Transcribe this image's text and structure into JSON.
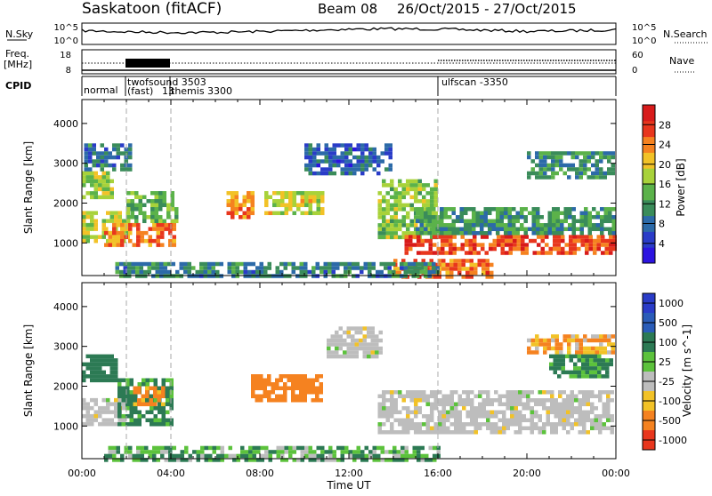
{
  "header": {
    "station": "Saskatoon (fitACF)",
    "beam": "Beam 08",
    "date_range": "26/Oct/2015 - 27/Oct/2015"
  },
  "noise_panel": {
    "left_label": "N.Sky",
    "left_ticks": [
      "10^5",
      "10^0"
    ],
    "right_label": "N.Search",
    "right_ticks": [
      "10^5",
      "10^0"
    ]
  },
  "freq_panel": {
    "left_label_1": "Freq.",
    "left_label_2": "[MHz]",
    "left_ticks": [
      "18",
      "8"
    ],
    "right_label": "Nave",
    "right_ticks": [
      "60",
      "0"
    ]
  },
  "cpid": {
    "label": "CPID",
    "modes": [
      {
        "label": "normal",
        "start_hour": 0
      },
      {
        "label": "twofsound  3503",
        "start_hour": 2
      },
      {
        "label": "(fast)",
        "start_hour": 2
      },
      {
        "label": "13",
        "start_hour": 4
      },
      {
        "label": "themis 3300",
        "start_hour": 4
      },
      {
        "label": "ulfscan -3350",
        "start_hour": 16
      }
    ]
  },
  "chart_data": [
    {
      "type": "heatmap",
      "name": "Power",
      "ylabel": "Slant Range [km]",
      "colorbar_label": "Power [dB]",
      "colorbar_ticks": [
        "4",
        "8",
        "12",
        "16",
        "20",
        "24",
        "28"
      ],
      "colorbar_min": 0,
      "colorbar_max": 32,
      "ylim": [
        180,
        4600
      ],
      "y_ticks": [
        1000,
        2000,
        3000,
        4000
      ],
      "xlim": [
        0,
        24
      ],
      "x_ticks": [
        "00:00",
        "04:00",
        "08:00",
        "12:00",
        "16:00",
        "20:00",
        "00:00"
      ],
      "dashed_vlines_hours": [
        2,
        4,
        16
      ],
      "regions": [
        {
          "t0": 0.0,
          "t1": 2.0,
          "r0": 1000,
          "r1": 1800,
          "value": 18
        },
        {
          "t0": 1.0,
          "t1": 4.2,
          "r0": 950,
          "r1": 1500,
          "value": 24
        },
        {
          "t0": 0.0,
          "t1": 1.3,
          "r0": 2100,
          "r1": 2800,
          "value": 17
        },
        {
          "t0": 0.1,
          "t1": 2.2,
          "r0": 2800,
          "r1": 3500,
          "value": 9
        },
        {
          "t0": 2.0,
          "t1": 4.2,
          "r0": 1500,
          "r1": 2300,
          "value": 14
        },
        {
          "t0": 6.5,
          "t1": 7.6,
          "r0": 1600,
          "r1": 2300,
          "value": 23
        },
        {
          "t0": 8.2,
          "t1": 10.8,
          "r0": 1700,
          "r1": 2300,
          "value": 19
        },
        {
          "t0": 10.0,
          "t1": 13.8,
          "r0": 2700,
          "r1": 3500,
          "value": 7
        },
        {
          "t0": 13.3,
          "t1": 16.0,
          "r0": 1100,
          "r1": 2600,
          "value": 16
        },
        {
          "t0": 14.5,
          "t1": 23.9,
          "r0": 700,
          "r1": 1200,
          "value": 27
        },
        {
          "t0": 15.0,
          "t1": 23.9,
          "r0": 1200,
          "r1": 1900,
          "value": 12
        },
        {
          "t0": 20.0,
          "t1": 23.8,
          "r0": 2600,
          "r1": 3300,
          "value": 11
        },
        {
          "t0": 14.0,
          "t1": 18.5,
          "r0": 180,
          "r1": 600,
          "value": 25
        },
        {
          "t0": 1.5,
          "t1": 16.0,
          "r0": 180,
          "r1": 520,
          "value": 10
        }
      ]
    },
    {
      "type": "heatmap",
      "name": "Velocity",
      "ylabel": "Slant Range [km]",
      "colorbar_label": "Velocity [m s^-1]",
      "colorbar_ticks": [
        "1000",
        "500",
        "100",
        "25",
        "-25",
        "-100",
        "-500",
        "-1000"
      ],
      "ylim": [
        180,
        4600
      ],
      "y_ticks": [
        1000,
        2000,
        3000,
        4000
      ],
      "xlim": [
        0,
        24
      ],
      "x_ticks": [
        "00:00",
        "04:00",
        "08:00",
        "12:00",
        "16:00",
        "20:00",
        "00:00"
      ],
      "xlabel": "Time UT",
      "dashed_vlines_hours": [
        2,
        4,
        16
      ],
      "regions": [
        {
          "t0": 0.0,
          "t1": 2.0,
          "r0": 1000,
          "r1": 1700,
          "value": 0
        },
        {
          "t0": 0.0,
          "t1": 1.5,
          "r0": 2100,
          "r1": 2800,
          "value": 200
        },
        {
          "t0": 1.6,
          "t1": 4.0,
          "r0": 1000,
          "r1": 2200,
          "value": 150
        },
        {
          "t0": 2.3,
          "t1": 3.6,
          "r0": 1500,
          "r1": 2000,
          "value": -150
        },
        {
          "t0": 7.6,
          "t1": 10.8,
          "r0": 1600,
          "r1": 2300,
          "value": -200
        },
        {
          "t0": 11.0,
          "t1": 13.5,
          "r0": 2700,
          "r1": 3500,
          "value": 0
        },
        {
          "t0": 13.3,
          "t1": 23.8,
          "r0": 800,
          "r1": 1900,
          "value": 0
        },
        {
          "t0": 20.0,
          "t1": 23.8,
          "r0": 2800,
          "r1": 3300,
          "value": -100
        },
        {
          "t0": 21.0,
          "t1": 23.8,
          "r0": 2200,
          "r1": 2800,
          "value": 150
        },
        {
          "t0": 1.0,
          "t1": 16.0,
          "r0": 180,
          "r1": 500,
          "value": 90
        }
      ]
    }
  ]
}
